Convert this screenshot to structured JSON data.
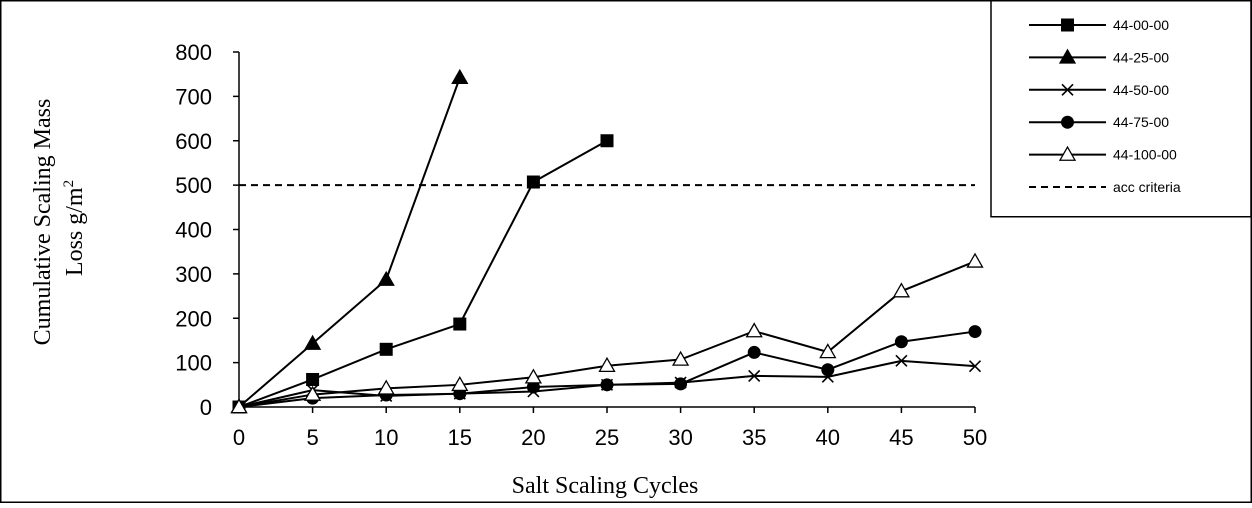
{
  "chart_data": {
    "type": "line",
    "title": "",
    "xlabel": "Salt Scaling Cycles",
    "ylabel_line1": "Cumulative Scaling Mass",
    "ylabel_line2": "Loss g/m",
    "ylabel_superscript": "2",
    "xlim": [
      0,
      50
    ],
    "ylim": [
      0,
      800
    ],
    "x_ticks": [
      0,
      5,
      10,
      15,
      20,
      25,
      30,
      35,
      40,
      45,
      50
    ],
    "y_ticks": [
      0,
      100,
      200,
      300,
      400,
      500,
      600,
      700,
      800
    ],
    "grid": false,
    "legend_position": "top-right",
    "series": [
      {
        "name": "44-00-00",
        "marker": "square",
        "color": "#000000",
        "x": [
          0,
          5,
          10,
          15,
          20,
          25
        ],
        "y": [
          0,
          62,
          130,
          187,
          507,
          600
        ]
      },
      {
        "name": "44-25-00",
        "marker": "triangle",
        "color": "#000000",
        "x": [
          0,
          5,
          10,
          15
        ],
        "y": [
          0,
          143,
          287,
          742
        ]
      },
      {
        "name": "44-50-00",
        "marker": "x",
        "color": "#000000",
        "x": [
          0,
          5,
          10,
          15,
          20,
          25,
          30,
          35,
          40,
          45,
          50
        ],
        "y": [
          0,
          38,
          25,
          30,
          35,
          50,
          55,
          70,
          68,
          104,
          92
        ]
      },
      {
        "name": "44-75-00",
        "marker": "circle",
        "color": "#000000",
        "x": [
          0,
          5,
          10,
          15,
          20,
          25,
          30,
          35,
          40,
          45,
          50
        ],
        "y": [
          0,
          20,
          27,
          30,
          45,
          50,
          52,
          123,
          84,
          147,
          170
        ]
      },
      {
        "name": "44-100-00",
        "marker": "triangle-open",
        "color": "#000000",
        "x": [
          0,
          5,
          10,
          15,
          20,
          25,
          30,
          35,
          40,
          45,
          50
        ],
        "y": [
          0,
          28,
          42,
          50,
          67,
          93,
          107,
          171,
          124,
          261,
          328
        ]
      }
    ],
    "reference_line": {
      "name": "acc criteria",
      "y": 500,
      "style": "dashed",
      "color": "#000000"
    }
  }
}
